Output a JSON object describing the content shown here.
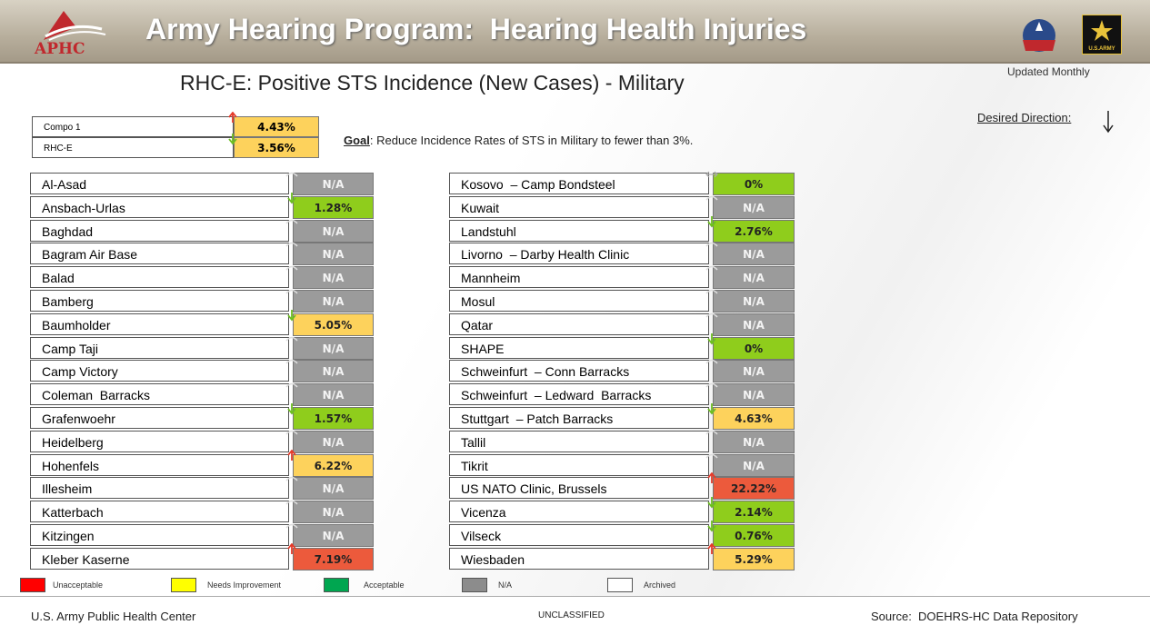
{
  "header": {
    "logo": "APHC",
    "title": "Army Hearing Program:  Hearing Health Injuries",
    "army": "U.S.ARMY"
  },
  "subtitle": "RHC-E: Positive STS Incidence (New Cases) - Military",
  "updated": "Updated Monthly",
  "summary": [
    {
      "name": "Compo 1",
      "value": "4.43%",
      "status": "yellow",
      "trend": "up"
    },
    {
      "name": "RHC-E",
      "value": "3.56%",
      "status": "yellow",
      "trend": "down"
    }
  ],
  "goal": {
    "label": "Goal",
    "text": ": Reduce Incidence Rates of STS in Military to fewer than 3%."
  },
  "desired": "Desired Direction:",
  "left": [
    {
      "name": "Al-Asad",
      "value": "N/A",
      "status": "gray",
      "trend": "flat"
    },
    {
      "name": "Ansbach-Urlas",
      "value": "1.28%",
      "status": "green",
      "trend": "down"
    },
    {
      "name": "Baghdad",
      "value": "N/A",
      "status": "gray",
      "trend": "flat"
    },
    {
      "name": "Bagram Air Base",
      "value": "N/A",
      "status": "gray",
      "trend": "flat"
    },
    {
      "name": "Balad",
      "value": "N/A",
      "status": "gray",
      "trend": "flat"
    },
    {
      "name": "Bamberg",
      "value": "N/A",
      "status": "gray",
      "trend": "flat"
    },
    {
      "name": "Baumholder",
      "value": "5.05%",
      "status": "yellow",
      "trend": "down"
    },
    {
      "name": "Camp Taji",
      "value": "N/A",
      "status": "gray",
      "trend": "flat"
    },
    {
      "name": "Camp Victory",
      "value": "N/A",
      "status": "gray",
      "trend": "flat"
    },
    {
      "name": "Coleman  Barracks",
      "value": "N/A",
      "status": "gray",
      "trend": "flat"
    },
    {
      "name": "Grafenwoehr",
      "value": "1.57%",
      "status": "green",
      "trend": "down"
    },
    {
      "name": "Heidelberg",
      "value": "N/A",
      "status": "gray",
      "trend": "flat"
    },
    {
      "name": "Hohenfels",
      "value": "6.22%",
      "status": "yellow",
      "trend": "up"
    },
    {
      "name": "Illesheim",
      "value": "N/A",
      "status": "gray",
      "trend": "flat"
    },
    {
      "name": "Katterbach",
      "value": "N/A",
      "status": "gray",
      "trend": "flat"
    },
    {
      "name": "Kitzingen",
      "value": "N/A",
      "status": "gray",
      "trend": "flat"
    },
    {
      "name": "Kleber Kaserne",
      "value": "7.19%",
      "status": "red",
      "trend": "up"
    }
  ],
  "right": [
    {
      "name": "Kosovo  – Camp Bondsteel",
      "value": "0%",
      "status": "green",
      "trend": "side"
    },
    {
      "name": "Kuwait",
      "value": "N/A",
      "status": "gray",
      "trend": "flat"
    },
    {
      "name": "Landstuhl",
      "value": "2.76%",
      "status": "green",
      "trend": "down"
    },
    {
      "name": "Livorno  – Darby Health Clinic",
      "value": "N/A",
      "status": "gray",
      "trend": "flat"
    },
    {
      "name": "Mannheim",
      "value": "N/A",
      "status": "gray",
      "trend": "flat"
    },
    {
      "name": "Mosul",
      "value": "N/A",
      "status": "gray",
      "trend": "flat"
    },
    {
      "name": "Qatar",
      "value": "N/A",
      "status": "gray",
      "trend": "flat"
    },
    {
      "name": "SHAPE",
      "value": "0%",
      "status": "green",
      "trend": "down"
    },
    {
      "name": "Schweinfurt  – Conn Barracks",
      "value": "N/A",
      "status": "gray",
      "trend": "flat"
    },
    {
      "name": "Schweinfurt  – Ledward  Barracks",
      "value": "N/A",
      "status": "gray",
      "trend": "flat"
    },
    {
      "name": "Stuttgart  – Patch Barracks",
      "value": "4.63%",
      "status": "yellow",
      "trend": "down"
    },
    {
      "name": "Tallil",
      "value": "N/A",
      "status": "gray",
      "trend": "flat"
    },
    {
      "name": "Tikrit",
      "value": "N/A",
      "status": "gray",
      "trend": "flat"
    },
    {
      "name": "US NATO Clinic, Brussels",
      "value": "22.22%",
      "status": "red",
      "trend": "up"
    },
    {
      "name": "Vicenza",
      "value": "2.14%",
      "status": "green",
      "trend": "down"
    },
    {
      "name": "Vilseck",
      "value": "0.76%",
      "status": "green",
      "trend": "down"
    },
    {
      "name": "Wiesbaden",
      "value": "5.29%",
      "status": "yellow",
      "trend": "up"
    }
  ],
  "legend": [
    {
      "label": "Unacceptable",
      "color": "#ff0000"
    },
    {
      "label": "Needs Improvement",
      "color": "#ffff00"
    },
    {
      "label": "Acceptable",
      "color": "#00a650"
    },
    {
      "label": "N/A",
      "color": "#8c8c8c"
    },
    {
      "label": "Archived",
      "color": "#ffffff"
    }
  ],
  "footer": {
    "left": "U.S. Army Public Health Center",
    "center": "UNCLASSIFIED",
    "right": "Source:  DOEHRS-HC Data Repository"
  }
}
